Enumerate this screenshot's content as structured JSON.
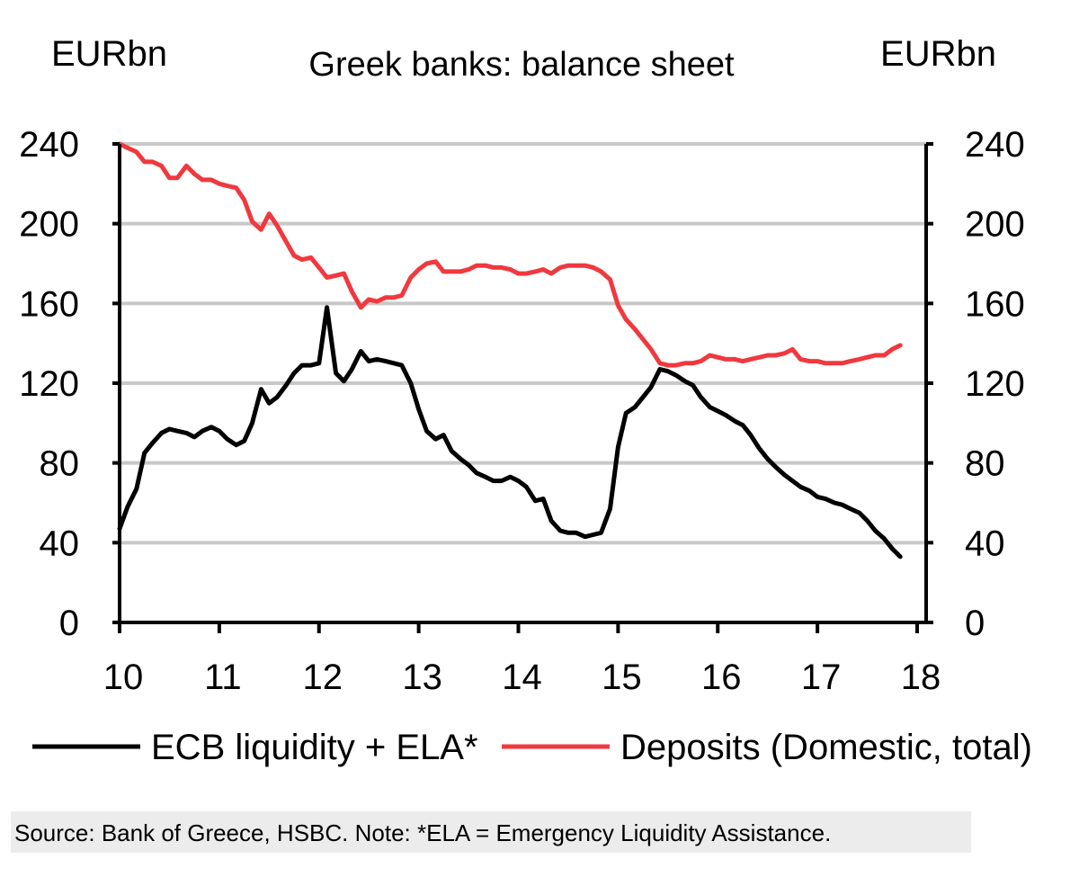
{
  "chart_data": {
    "type": "line",
    "title": "Greek banks: balance sheet",
    "left_unit": "EURbn",
    "right_unit": "EURbn",
    "xlim": [
      10,
      18
    ],
    "ylim": [
      0,
      240
    ],
    "x_ticks": [
      10,
      11,
      12,
      13,
      14,
      15,
      16,
      17,
      18
    ],
    "x_tick_labels": [
      "10",
      "11",
      "12",
      "13",
      "14",
      "15",
      "16",
      "17",
      "18"
    ],
    "y_ticks": [
      0,
      40,
      80,
      120,
      160,
      200,
      240
    ],
    "y_tick_labels": [
      "0",
      "40",
      "80",
      "120",
      "160",
      "200",
      "240"
    ],
    "grid": true,
    "series": [
      {
        "name": "ECB liquidity + ELA*",
        "color": "#000000",
        "points": [
          [
            10.0,
            47
          ],
          [
            10.08,
            58
          ],
          [
            10.17,
            67
          ],
          [
            10.25,
            85
          ],
          [
            10.33,
            90
          ],
          [
            10.42,
            95
          ],
          [
            10.5,
            97
          ],
          [
            10.58,
            96
          ],
          [
            10.67,
            95
          ],
          [
            10.75,
            93
          ],
          [
            10.83,
            96
          ],
          [
            10.92,
            98
          ],
          [
            11.0,
            96
          ],
          [
            11.08,
            92
          ],
          [
            11.17,
            89
          ],
          [
            11.25,
            91
          ],
          [
            11.33,
            100
          ],
          [
            11.42,
            117
          ],
          [
            11.5,
            110
          ],
          [
            11.58,
            113
          ],
          [
            11.67,
            119
          ],
          [
            11.75,
            125
          ],
          [
            11.83,
            129
          ],
          [
            11.92,
            129
          ],
          [
            12.0,
            130
          ],
          [
            12.08,
            158
          ],
          [
            12.17,
            125
          ],
          [
            12.25,
            121
          ],
          [
            12.33,
            127
          ],
          [
            12.42,
            136
          ],
          [
            12.5,
            131
          ],
          [
            12.58,
            132
          ],
          [
            12.67,
            131
          ],
          [
            12.75,
            130
          ],
          [
            12.83,
            129
          ],
          [
            12.92,
            120
          ],
          [
            13.0,
            107
          ],
          [
            13.08,
            96
          ],
          [
            13.17,
            92
          ],
          [
            13.25,
            94
          ],
          [
            13.33,
            86
          ],
          [
            13.42,
            82
          ],
          [
            13.5,
            79
          ],
          [
            13.58,
            75
          ],
          [
            13.67,
            73
          ],
          [
            13.75,
            71
          ],
          [
            13.83,
            71
          ],
          [
            13.92,
            73
          ],
          [
            14.0,
            71
          ],
          [
            14.08,
            68
          ],
          [
            14.17,
            61
          ],
          [
            14.25,
            62
          ],
          [
            14.33,
            51
          ],
          [
            14.42,
            46
          ],
          [
            14.5,
            45
          ],
          [
            14.58,
            45
          ],
          [
            14.67,
            43
          ],
          [
            14.75,
            44
          ],
          [
            14.83,
            45
          ],
          [
            14.92,
            57
          ],
          [
            15.0,
            88
          ],
          [
            15.08,
            105
          ],
          [
            15.17,
            108
          ],
          [
            15.25,
            113
          ],
          [
            15.33,
            118
          ],
          [
            15.42,
            127
          ],
          [
            15.5,
            126
          ],
          [
            15.58,
            124
          ],
          [
            15.67,
            121
          ],
          [
            15.75,
            119
          ],
          [
            15.83,
            113
          ],
          [
            15.92,
            108
          ],
          [
            16.0,
            106
          ],
          [
            16.08,
            104
          ],
          [
            16.17,
            101
          ],
          [
            16.25,
            99
          ],
          [
            16.33,
            94
          ],
          [
            16.42,
            87
          ],
          [
            16.5,
            82
          ],
          [
            16.58,
            78
          ],
          [
            16.67,
            74
          ],
          [
            16.75,
            71
          ],
          [
            16.83,
            68
          ],
          [
            16.92,
            66
          ],
          [
            17.0,
            63
          ],
          [
            17.08,
            62
          ],
          [
            17.17,
            60
          ],
          [
            17.25,
            59
          ],
          [
            17.33,
            57
          ],
          [
            17.42,
            55
          ],
          [
            17.5,
            51
          ],
          [
            17.58,
            46
          ],
          [
            17.67,
            42
          ],
          [
            17.75,
            37
          ],
          [
            17.83,
            33
          ]
        ]
      },
      {
        "name": "Deposits (Domestic, total)",
        "color": "#f0393e",
        "points": [
          [
            10.0,
            240
          ],
          [
            10.08,
            238
          ],
          [
            10.17,
            236
          ],
          [
            10.25,
            231
          ],
          [
            10.33,
            231
          ],
          [
            10.42,
            229
          ],
          [
            10.5,
            223
          ],
          [
            10.58,
            223
          ],
          [
            10.67,
            229
          ],
          [
            10.75,
            225
          ],
          [
            10.83,
            222
          ],
          [
            10.92,
            222
          ],
          [
            11.0,
            220
          ],
          [
            11.08,
            219
          ],
          [
            11.17,
            218
          ],
          [
            11.25,
            212
          ],
          [
            11.33,
            201
          ],
          [
            11.42,
            197
          ],
          [
            11.5,
            205
          ],
          [
            11.58,
            199
          ],
          [
            11.67,
            191
          ],
          [
            11.75,
            184
          ],
          [
            11.83,
            182
          ],
          [
            11.92,
            183
          ],
          [
            12.0,
            178
          ],
          [
            12.08,
            173
          ],
          [
            12.17,
            174
          ],
          [
            12.25,
            175
          ],
          [
            12.33,
            166
          ],
          [
            12.42,
            158
          ],
          [
            12.5,
            162
          ],
          [
            12.58,
            161
          ],
          [
            12.67,
            163
          ],
          [
            12.75,
            163
          ],
          [
            12.83,
            164
          ],
          [
            12.92,
            173
          ],
          [
            13.0,
            177
          ],
          [
            13.08,
            180
          ],
          [
            13.17,
            181
          ],
          [
            13.25,
            176
          ],
          [
            13.33,
            176
          ],
          [
            13.42,
            176
          ],
          [
            13.5,
            177
          ],
          [
            13.58,
            179
          ],
          [
            13.67,
            179
          ],
          [
            13.75,
            178
          ],
          [
            13.83,
            178
          ],
          [
            13.92,
            177
          ],
          [
            14.0,
            175
          ],
          [
            14.08,
            175
          ],
          [
            14.17,
            176
          ],
          [
            14.25,
            177
          ],
          [
            14.33,
            175
          ],
          [
            14.42,
            178
          ],
          [
            14.5,
            179
          ],
          [
            14.58,
            179
          ],
          [
            14.67,
            179
          ],
          [
            14.75,
            178
          ],
          [
            14.83,
            176
          ],
          [
            14.92,
            172
          ],
          [
            15.0,
            159
          ],
          [
            15.08,
            152
          ],
          [
            15.17,
            147
          ],
          [
            15.25,
            142
          ],
          [
            15.33,
            137
          ],
          [
            15.42,
            130
          ],
          [
            15.5,
            129
          ],
          [
            15.58,
            129
          ],
          [
            15.67,
            130
          ],
          [
            15.75,
            130
          ],
          [
            15.83,
            131
          ],
          [
            15.92,
            134
          ],
          [
            16.0,
            133
          ],
          [
            16.08,
            132
          ],
          [
            16.17,
            132
          ],
          [
            16.25,
            131
          ],
          [
            16.33,
            132
          ],
          [
            16.42,
            133
          ],
          [
            16.5,
            134
          ],
          [
            16.58,
            134
          ],
          [
            16.67,
            135
          ],
          [
            16.75,
            137
          ],
          [
            16.83,
            132
          ],
          [
            16.92,
            131
          ],
          [
            17.0,
            131
          ],
          [
            17.08,
            130
          ],
          [
            17.17,
            130
          ],
          [
            17.25,
            130
          ],
          [
            17.33,
            131
          ],
          [
            17.42,
            132
          ],
          [
            17.5,
            133
          ],
          [
            17.58,
            134
          ],
          [
            17.67,
            134
          ],
          [
            17.75,
            137
          ],
          [
            17.83,
            139
          ]
        ]
      }
    ],
    "legend_position": "bottom",
    "source_note": "Source: Bank of Greece, HSBC. Note: *ELA = Emergency Liquidity Assistance."
  }
}
